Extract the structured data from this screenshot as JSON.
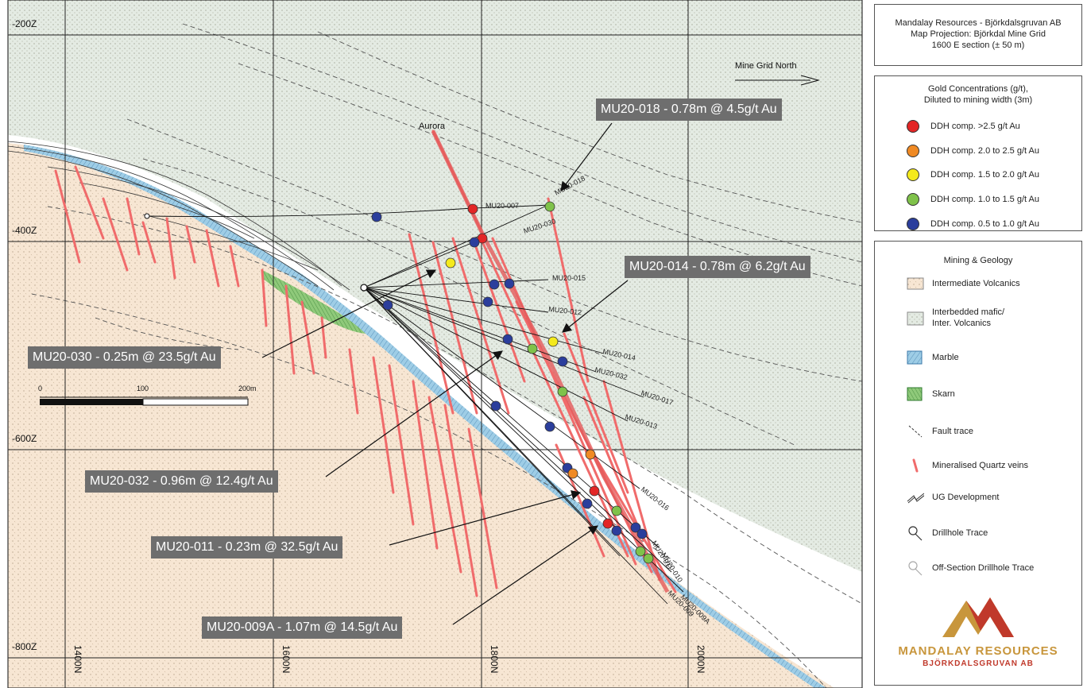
{
  "grid": {
    "elevations": [
      "-200Z",
      "-400Z",
      "-600Z",
      "-800Z"
    ],
    "northings": [
      "1400N",
      "1600N",
      "1800N",
      "2000N"
    ]
  },
  "scale": {
    "ticks": [
      "0",
      "100",
      "200m"
    ]
  },
  "north_arrow": {
    "label": "Mine Grid North"
  },
  "structure_label": "Aurora",
  "drillholes": [
    "MU20-007",
    "MU20-018",
    "MU20-030",
    "MU20-015",
    "MU20-012",
    "MU20-014",
    "MU20-032",
    "MU20-017",
    "MU20-013",
    "MU20-016",
    "MU20-011",
    "MU20-010",
    "MU20-009A",
    "MU20-009"
  ],
  "callouts": [
    {
      "id": "mu20-018",
      "text": "MU20-018 - 0.78m @ 4.5g/t Au"
    },
    {
      "id": "mu20-014",
      "text": "MU20-014 - 0.78m @ 6.2g/t Au"
    },
    {
      "id": "mu20-030",
      "text": "MU20-030 - 0.25m @ 23.5g/t Au"
    },
    {
      "id": "mu20-032",
      "text": "MU20-032 - 0.96m @ 12.4g/t Au"
    },
    {
      "id": "mu20-011",
      "text": "MU20-011 - 0.23m @ 32.5g/t Au"
    },
    {
      "id": "mu20-009a",
      "text": "MU20-009A - 1.07m @ 14.5g/t Au"
    }
  ],
  "title_panel": {
    "line1": "Mandalay Resources - Björkdalsgruvan AB",
    "line2": "Map Projection: Björkdal Mine Grid",
    "line3": "1600 E section (± 50 m)"
  },
  "gold_legend": {
    "title1": "Gold Concentrations (g/t),",
    "title2": "Diluted to mining width (3m)",
    "items": [
      {
        "label": "DDH comp. >2.5 g/t Au",
        "color": "#e32626"
      },
      {
        "label": "DDH comp. 2.0 to 2.5 g/t Au",
        "color": "#f08a24"
      },
      {
        "label": "DDH comp. 1.5 to 2.0 g/t Au",
        "color": "#f4ea1c"
      },
      {
        "label": "DDH comp. 1.0 to 1.5 g/t Au",
        "color": "#7fc24a"
      },
      {
        "label": "DDH comp. 0.5 to 1.0 g/t Au",
        "color": "#2b3e9c"
      }
    ]
  },
  "geology_legend": {
    "title": "Mining & Geology",
    "items": [
      {
        "label": "Intermediate Volcanics",
        "icon": "intermediate-volcanics-swatch"
      },
      {
        "label": "Interbedded mafic/",
        "label2": "Inter. Volcanics",
        "icon": "interbedded-mafic-swatch"
      },
      {
        "label": "Marble",
        "icon": "marble-swatch"
      },
      {
        "label": "Skarn",
        "icon": "skarn-swatch"
      },
      {
        "label": "Fault trace",
        "icon": "fault-trace-icon"
      },
      {
        "label": "Mineralised Quartz veins",
        "icon": "quartz-vein-icon"
      },
      {
        "label": "UG Development",
        "icon": "ug-development-icon"
      },
      {
        "label": "Drillhole Trace",
        "icon": "drillhole-trace-icon"
      },
      {
        "label": "Off-Section Drillhole Trace",
        "icon": "off-section-drillhole-icon"
      }
    ]
  },
  "logo": {
    "name": "MANDALAY RESOURCES",
    "sub": "BJÖRKDALSGRUVAN AB"
  },
  "colors": {
    "volcanics": "#f7e6d3",
    "mafic": "#e4ebe3",
    "marble": "#9ecde6",
    "skarn": "#8fc97a",
    "vein": "#f06b6b",
    "callout": "#6e6e6e",
    "logo_gold": "#c8963c",
    "logo_red": "#c0392b"
  }
}
